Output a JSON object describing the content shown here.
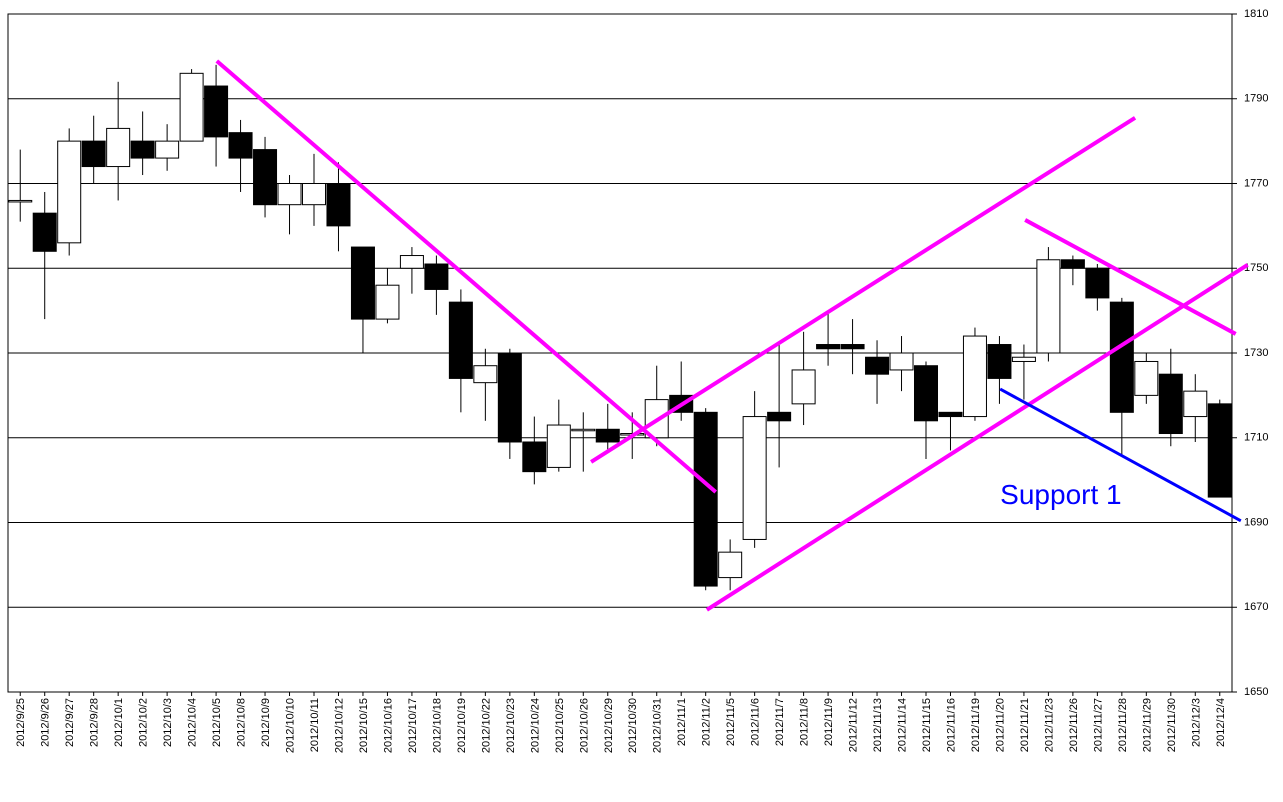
{
  "chart_data": {
    "type": "candlestick",
    "categories": [
      "2012/9/25",
      "2012/9/26",
      "2012/9/27",
      "2012/9/28",
      "2012/10/1",
      "2012/10/2",
      "2012/10/3",
      "2012/10/4",
      "2012/10/5",
      "2012/10/8",
      "2012/10/9",
      "2012/10/10",
      "2012/10/11",
      "2012/10/12",
      "2012/10/15",
      "2012/10/16",
      "2012/10/17",
      "2012/10/18",
      "2012/10/19",
      "2012/10/22",
      "2012/10/23",
      "2012/10/24",
      "2012/10/25",
      "2012/10/26",
      "2012/10/29",
      "2012/10/30",
      "2012/10/31",
      "2012/11/1",
      "2012/11/2",
      "2012/11/5",
      "2012/11/6",
      "2012/11/7",
      "2012/11/8",
      "2012/11/9",
      "2012/11/12",
      "2012/11/13",
      "2012/11/14",
      "2012/11/15",
      "2012/11/16",
      "2012/11/19",
      "2012/11/20",
      "2012/11/21",
      "2012/11/23",
      "2012/11/26",
      "2012/11/27",
      "2012/11/28",
      "2012/11/29",
      "2012/11/30",
      "2012/12/3",
      "2012/12/4"
    ],
    "open": [
      1766,
      1763,
      1756,
      1780,
      1774,
      1780,
      1776,
      1780,
      1793,
      1782,
      1778,
      1765,
      1765,
      1770,
      1755,
      1738,
      1750,
      1751,
      1742,
      1723,
      1730,
      1709,
      1703,
      1711.7,
      1712,
      1711,
      1710,
      1720,
      1716,
      1677,
      1686,
      1716,
      1718,
      1732,
      1732,
      1729,
      1726,
      1727,
      1716,
      1715,
      1732,
      1728,
      1730,
      1752,
      1750,
      1742,
      1720,
      1725,
      1715,
      1718
    ],
    "high": [
      1778,
      1768,
      1783,
      1786,
      1794,
      1787,
      1784,
      1797,
      1798,
      1785,
      1781,
      1772,
      1777,
      1775,
      1755,
      1750,
      1755,
      1753,
      1745,
      1731,
      1731,
      1715,
      1719,
      1716,
      1718,
      1716,
      1727,
      1728,
      1717,
      1686,
      1721,
      1732,
      1735,
      1740,
      1738,
      1733,
      1734,
      1728,
      1716,
      1736,
      1734,
      1732,
      1755,
      1753,
      1751,
      1743,
      1730,
      1731,
      1725,
      1719
    ],
    "low": [
      1761,
      1738,
      1753,
      1770,
      1766,
      1772,
      1773,
      1780,
      1774,
      1768,
      1762,
      1758,
      1760,
      1754,
      1730,
      1737,
      1744,
      1739,
      1716,
      1714,
      1705,
      1699,
      1702,
      1702,
      1707,
      1705,
      1708,
      1714,
      1674,
      1674,
      1684,
      1703,
      1713,
      1727,
      1725,
      1718,
      1721,
      1705,
      1707,
      1714,
      1718,
      1719,
      1728,
      1746,
      1740,
      1706,
      1718,
      1708,
      1709,
      1696
    ],
    "close": [
      1766,
      1754,
      1780,
      1774,
      1783,
      1776,
      1780,
      1796,
      1781,
      1776,
      1765,
      1770,
      1770,
      1760,
      1738,
      1746,
      1753,
      1745,
      1724,
      1727,
      1709,
      1702,
      1713,
      1712,
      1709,
      1711,
      1719,
      1716,
      1675,
      1683,
      1715,
      1714,
      1726,
      1731,
      1731,
      1725,
      1730,
      1714,
      1715,
      1734,
      1724,
      1729,
      1752,
      1750,
      1743,
      1716,
      1728,
      1711,
      1721,
      1696
    ],
    "up_color": "#ffffff",
    "down_color": "#000000",
    "ylim": [
      1650,
      1810
    ],
    "yticks": [
      1650,
      1670,
      1690,
      1710,
      1730,
      1750,
      1770,
      1790,
      1810
    ],
    "grid": true,
    "trendlines": [
      {
        "color": "#ff00ff",
        "x": [
          8.03,
          28.41
        ],
        "y": [
          1798.9,
          1697.2
        ]
      },
      {
        "color": "#ff00ff",
        "x": [
          23.32,
          45.54
        ],
        "y": [
          1704.3,
          1785.5
        ]
      },
      {
        "color": "#ff00ff",
        "x": [
          28.05,
          50.14
        ],
        "y": [
          1669.4,
          1750.8
        ]
      },
      {
        "color": "#ff00ff",
        "x": [
          41.05,
          49.65
        ],
        "y": [
          1761.4,
          1734.5
        ]
      },
      {
        "color": "#0000ff",
        "x": [
          40.03,
          49.86
        ],
        "y": [
          1721.5,
          1690.4
        ],
        "label": "Support 1"
      }
    ]
  }
}
